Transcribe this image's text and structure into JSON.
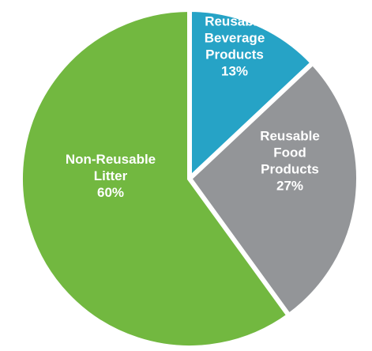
{
  "chart_data": {
    "type": "pie",
    "start_angle_deg": 0,
    "direction": "clockwise",
    "slices": [
      {
        "lines": [
          "Reusable",
          "Beverage",
          "Products",
          "13%"
        ],
        "value": 13,
        "color": "#26a3c6"
      },
      {
        "lines": [
          "Reusable",
          "Food",
          "Products",
          "27%"
        ],
        "value": 27,
        "color": "#939598"
      },
      {
        "lines": [
          "Non-Reusable",
          "Litter",
          "60%"
        ],
        "value": 60,
        "color": "#72b840"
      }
    ]
  }
}
